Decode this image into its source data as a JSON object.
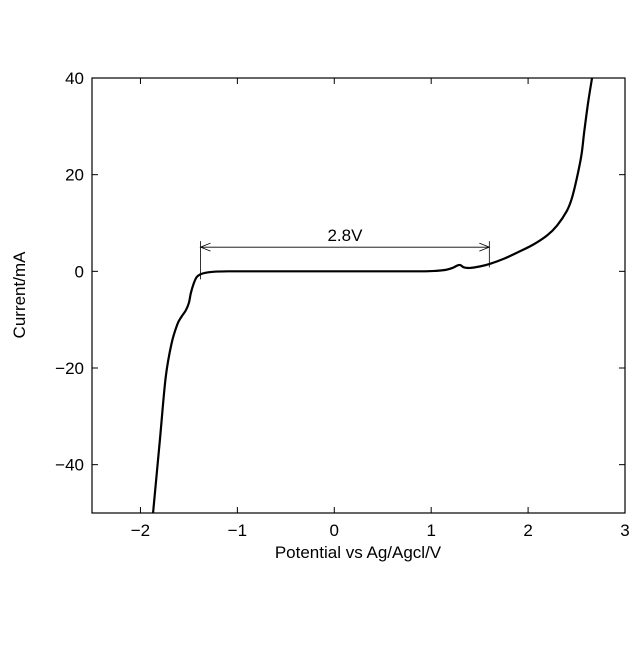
{
  "chart_data": {
    "type": "line",
    "title": "",
    "xlabel": "Potential vs Ag/Agcl/V",
    "ylabel": "Current/mA",
    "xlim": [
      -2.5,
      3
    ],
    "ylim": [
      -50,
      40
    ],
    "xticks": [
      -2,
      -1,
      0,
      1,
      2,
      3
    ],
    "yticks": [
      -40,
      -20,
      0,
      20,
      40
    ],
    "xtick_labels": [
      "−2",
      "−1",
      "0",
      "1",
      "2",
      "3"
    ],
    "ytick_labels": [
      "−40",
      "−20",
      "0",
      "20",
      "40"
    ],
    "grid": false,
    "line_color": "#000000",
    "series": [
      {
        "x": [
          -1.87,
          -1.8,
          -1.74,
          -1.68,
          -1.62,
          -1.58,
          -1.53,
          -1.5,
          -1.48,
          -1.45,
          -1.42,
          -1.38,
          -1.33,
          -1.25,
          -1.1,
          -0.8,
          0.0,
          0.5,
          0.9,
          1.05,
          1.15,
          1.22,
          1.27,
          1.3,
          1.34,
          1.4,
          1.5,
          1.6,
          1.75,
          1.9,
          2.05,
          2.2,
          2.3,
          2.4,
          2.45,
          2.5,
          2.55,
          2.58,
          2.62,
          2.66
        ],
        "y": [
          -50,
          -35,
          -22,
          -15,
          -11,
          -9.5,
          -8,
          -6.5,
          -4.5,
          -2.5,
          -1.2,
          -0.6,
          -0.3,
          -0.1,
          0,
          0,
          0,
          0,
          0,
          0.1,
          0.3,
          0.7,
          1.2,
          1.3,
          0.8,
          0.7,
          1.0,
          1.5,
          2.6,
          4.0,
          5.5,
          7.5,
          9.5,
          12.5,
          15,
          19,
          24,
          29,
          35,
          40
        ]
      }
    ],
    "annotations": [
      {
        "type": "double-arrow",
        "text": "2.8V",
        "x_start": -1.38,
        "x_end": 1.6,
        "y": 5
      }
    ]
  }
}
